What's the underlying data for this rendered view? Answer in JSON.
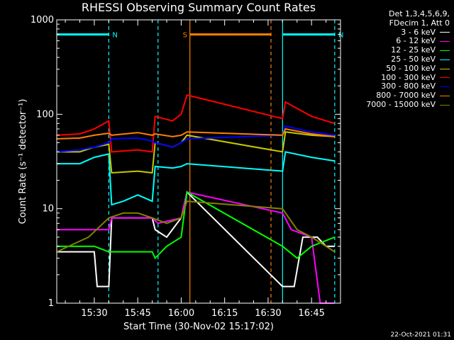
{
  "chart_data": {
    "type": "line",
    "title": "RHESSI Observing Summary Count Rates",
    "xlabel": "Start Time (30-Nov-02 15:17:02)",
    "ylabel": "Count Rate (s⁻¹ detector⁻¹)",
    "y_scale": "log",
    "ylim": [
      1,
      1000
    ],
    "xlim": [
      "15:17:02",
      "16:55:00"
    ],
    "x_ticks": [
      "15:30",
      "15:45",
      "16:00",
      "16:15",
      "16:30",
      "16:45"
    ],
    "y_ticks": [
      "1",
      "10",
      "100",
      "1000"
    ],
    "legend_header": [
      "Det 1,3,4,5,6,9,",
      "FDecim 1, Att 0"
    ],
    "legend_position": "right",
    "annotations": [
      {
        "label": "N",
        "color": "#00ffff",
        "bar_start": "15:17",
        "bar_end": "15:35",
        "y": 700
      },
      {
        "label": "N",
        "color": "#00ffff",
        "bar_start": "16:35",
        "bar_end": "16:53",
        "y": 700
      },
      {
        "label": "S",
        "color": "#ff8000",
        "bar_start": "16:03",
        "bar_end": "16:31",
        "y": 700
      }
    ],
    "vertical_markers": [
      {
        "time": "15:35",
        "color": "#00ffff",
        "style": "dashed"
      },
      {
        "time": "15:52",
        "color": "#00ffff",
        "style": "dashed"
      },
      {
        "time": "16:03",
        "color": "#ff8000",
        "style": "solid"
      },
      {
        "time": "16:31",
        "color": "#ff8000",
        "style": "dashed"
      },
      {
        "time": "16:35",
        "color": "#00ffff",
        "style": "solid"
      },
      {
        "time": "16:53",
        "color": "#00ffff",
        "style": "dashed"
      }
    ],
    "series": [
      {
        "name": "3 - 6 keV",
        "color": "#ffffff",
        "points": [
          [
            "15:17",
            3.5
          ],
          [
            "15:30",
            3.5
          ],
          [
            "15:31",
            1.5
          ],
          [
            "15:35",
            1.5
          ],
          [
            "15:36",
            8
          ],
          [
            "15:50",
            8
          ],
          [
            "15:51",
            6
          ],
          [
            "15:55",
            5
          ],
          [
            "16:00",
            8
          ],
          [
            "16:02",
            15
          ],
          [
            "16:35",
            1.5
          ],
          [
            "16:39",
            1.5
          ],
          [
            "16:42",
            5
          ],
          [
            "16:47",
            5
          ],
          [
            "16:50",
            4
          ],
          [
            "16:53",
            4
          ]
        ]
      },
      {
        "name": "6 - 12 keV",
        "color": "#ff00ff",
        "points": [
          [
            "15:17",
            6
          ],
          [
            "15:35",
            6
          ],
          [
            "15:36",
            8
          ],
          [
            "15:50",
            8
          ],
          [
            "15:52",
            7
          ],
          [
            "16:00",
            8
          ],
          [
            "16:02",
            15
          ],
          [
            "16:35",
            9
          ],
          [
            "16:38",
            6
          ],
          [
            "16:45",
            5
          ],
          [
            "16:48",
            1
          ],
          [
            "16:53",
            1
          ]
        ]
      },
      {
        "name": "12 - 25 keV",
        "color": "#00ff00",
        "points": [
          [
            "15:17",
            4
          ],
          [
            "15:30",
            4
          ],
          [
            "15:35",
            3.5
          ],
          [
            "15:50",
            3.5
          ],
          [
            "15:51",
            3
          ],
          [
            "15:55",
            4
          ],
          [
            "16:00",
            5
          ],
          [
            "16:02",
            15
          ],
          [
            "16:35",
            4
          ],
          [
            "16:40",
            3
          ],
          [
            "16:45",
            4
          ],
          [
            "16:53",
            5
          ]
        ]
      },
      {
        "name": "25 - 50 keV",
        "color": "#00ffff",
        "points": [
          [
            "15:17",
            30
          ],
          [
            "15:25",
            30
          ],
          [
            "15:30",
            35
          ],
          [
            "15:35",
            38
          ],
          [
            "15:36",
            11
          ],
          [
            "15:40",
            12
          ],
          [
            "15:45",
            14
          ],
          [
            "15:50",
            12
          ],
          [
            "15:51",
            28
          ],
          [
            "15:57",
            27
          ],
          [
            "16:00",
            28
          ],
          [
            "16:02",
            30
          ],
          [
            "16:35",
            25
          ],
          [
            "16:36",
            40
          ],
          [
            "16:45",
            35
          ],
          [
            "16:53",
            32
          ]
        ]
      },
      {
        "name": "50 - 100 keV",
        "color": "#c8c800",
        "points": [
          [
            "15:17",
            40
          ],
          [
            "15:25",
            40
          ],
          [
            "15:30",
            45
          ],
          [
            "15:35",
            48
          ],
          [
            "15:36",
            24
          ],
          [
            "15:45",
            25
          ],
          [
            "15:50",
            24
          ],
          [
            "15:51",
            50
          ],
          [
            "15:57",
            45
          ],
          [
            "16:00",
            50
          ],
          [
            "16:02",
            60
          ],
          [
            "16:35",
            40
          ],
          [
            "16:36",
            65
          ],
          [
            "16:45",
            60
          ],
          [
            "16:53",
            58
          ]
        ]
      },
      {
        "name": "100 - 300 keV",
        "color": "#ff0000",
        "points": [
          [
            "15:17",
            60
          ],
          [
            "15:25",
            62
          ],
          [
            "15:30",
            70
          ],
          [
            "15:35",
            85
          ],
          [
            "15:36",
            40
          ],
          [
            "15:45",
            42
          ],
          [
            "15:50",
            40
          ],
          [
            "15:51",
            95
          ],
          [
            "15:57",
            85
          ],
          [
            "16:00",
            100
          ],
          [
            "16:02",
            160
          ],
          [
            "16:35",
            90
          ],
          [
            "16:36",
            135
          ],
          [
            "16:45",
            95
          ],
          [
            "16:53",
            80
          ]
        ]
      },
      {
        "name": "300 - 800 keV",
        "color": "#0000ff",
        "points": [
          [
            "15:17",
            40
          ],
          [
            "15:25",
            42
          ],
          [
            "15:30",
            45
          ],
          [
            "15:35",
            50
          ],
          [
            "15:36",
            55
          ],
          [
            "15:45",
            56
          ],
          [
            "15:50",
            52
          ],
          [
            "15:51",
            50
          ],
          [
            "15:57",
            45
          ],
          [
            "16:00",
            50
          ],
          [
            "16:02",
            55
          ],
          [
            "16:35",
            60
          ],
          [
            "16:36",
            75
          ],
          [
            "16:45",
            65
          ],
          [
            "16:53",
            60
          ]
        ]
      },
      {
        "name": "800 - 7000 keV",
        "color": "#ff8000",
        "points": [
          [
            "15:17",
            55
          ],
          [
            "15:25",
            56
          ],
          [
            "15:30",
            60
          ],
          [
            "15:35",
            63
          ],
          [
            "15:36",
            60
          ],
          [
            "15:45",
            64
          ],
          [
            "15:50",
            60
          ],
          [
            "15:51",
            62
          ],
          [
            "15:57",
            58
          ],
          [
            "16:00",
            60
          ],
          [
            "16:02",
            65
          ],
          [
            "16:35",
            60
          ],
          [
            "16:36",
            70
          ],
          [
            "16:45",
            62
          ],
          [
            "16:53",
            58
          ]
        ]
      },
      {
        "name": "7000 - 15000 keV",
        "color": "#808000",
        "points": [
          [
            "15:17",
            3.5
          ],
          [
            "15:28",
            5
          ],
          [
            "15:35",
            8
          ],
          [
            "15:40",
            9
          ],
          [
            "15:45",
            9
          ],
          [
            "15:50",
            8
          ],
          [
            "15:55",
            7
          ],
          [
            "16:00",
            8
          ],
          [
            "16:02",
            12
          ],
          [
            "16:35",
            10
          ],
          [
            "16:40",
            6
          ],
          [
            "16:45",
            5
          ],
          [
            "16:53",
            3.5
          ]
        ]
      }
    ]
  },
  "footer": {
    "timestamp": "22-Oct-2021 01:31"
  }
}
